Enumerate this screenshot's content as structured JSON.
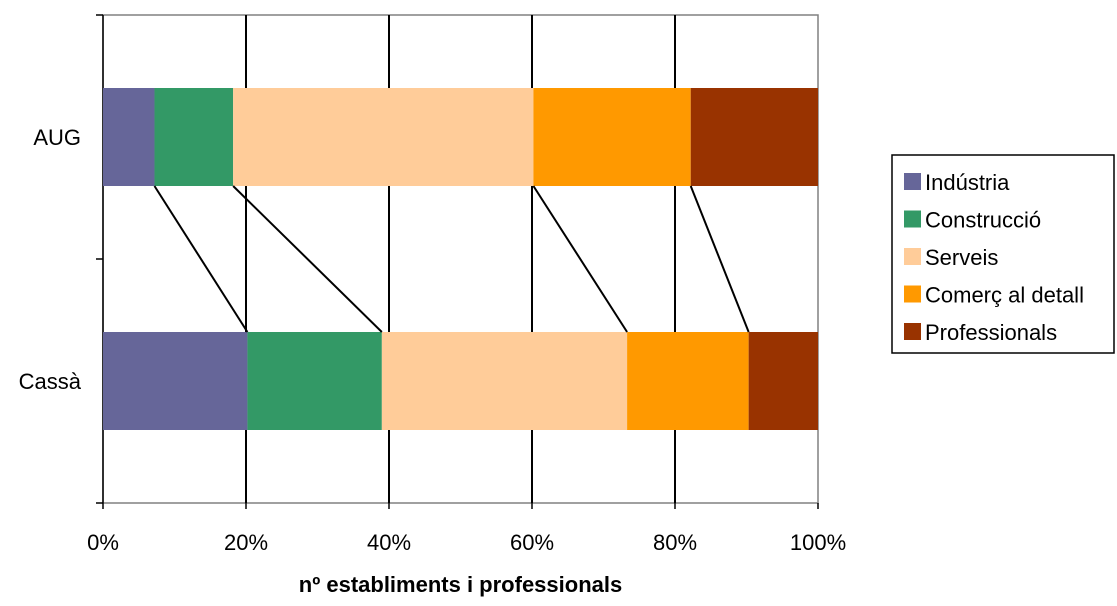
{
  "chart_data": {
    "type": "bar",
    "orientation": "horizontal",
    "stacked": "percent",
    "categories": [
      "AUG",
      "Cassà"
    ],
    "series": [
      {
        "name": "Indústria",
        "color": "#666699",
        "values": [
          7.2,
          20.2
        ]
      },
      {
        "name": "Construcció",
        "color": "#339966",
        "values": [
          11.0,
          18.8
        ]
      },
      {
        "name": "Serveis",
        "color": "#FFCC99",
        "values": [
          42.0,
          34.3
        ]
      },
      {
        "name": "Comerç al detall",
        "color": "#FF9900",
        "values": [
          22.0,
          17.0
        ]
      },
      {
        "name": "Professionals",
        "color": "#993300",
        "values": [
          17.8,
          9.7
        ]
      }
    ],
    "xlabel": "nº establiments i professionals",
    "ylabel": "",
    "xlim": [
      0,
      100
    ],
    "x_ticks": [
      "0%",
      "20%",
      "40%",
      "60%",
      "80%",
      "100%"
    ],
    "grid": "vertical",
    "series_connector_lines": true,
    "legend_position": "right"
  }
}
